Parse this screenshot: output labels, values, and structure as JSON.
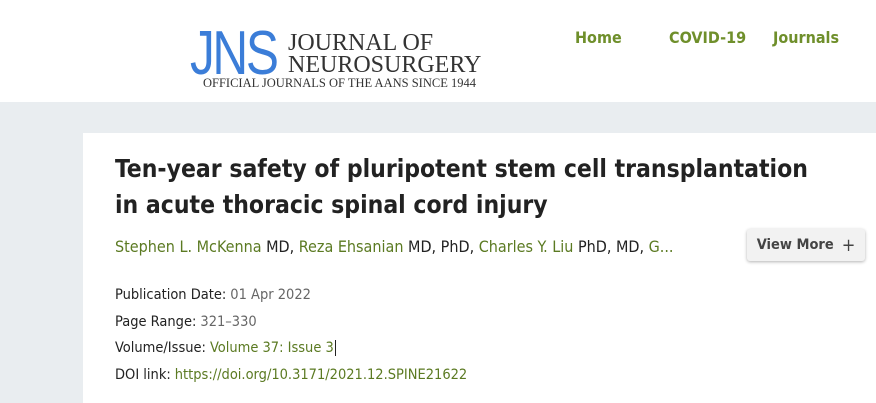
{
  "logo": {
    "mark": "JNS",
    "line1": "JOURNAL OF",
    "line2": "NEUROSURGERY",
    "tagline": "OFFICIAL JOURNALS OF THE AANS SINCE 1944"
  },
  "nav": [
    {
      "label": "Home"
    },
    {
      "label": "COVID-19"
    },
    {
      "label": "Journals"
    }
  ],
  "article": {
    "title": "Ten-year safety of pluripotent stem cell transplantation in acute thoracic spinal cord injury",
    "authors": [
      {
        "name": "Stephen L. McKenna",
        "suffix": " MD, "
      },
      {
        "name": "Reza Ehsanian",
        "suffix": " MD, PhD, "
      },
      {
        "name": "Charles Y. Liu",
        "suffix": " PhD, MD, "
      },
      {
        "name": "G...",
        "suffix": ""
      }
    ],
    "view_more": "View More",
    "view_more_icon": "plus-icon",
    "meta": {
      "pub_label": "Publication Date:",
      "pub_value": "01 Apr 2022",
      "page_label": "Page Range:",
      "page_value": "321–330",
      "vol_label": "Volume/Issue:",
      "vol_value": "Volume 37: Issue 3",
      "doi_label": "DOI link:",
      "doi_value": "https://doi.org/10.3171/2021.12.SPINE21622"
    }
  }
}
